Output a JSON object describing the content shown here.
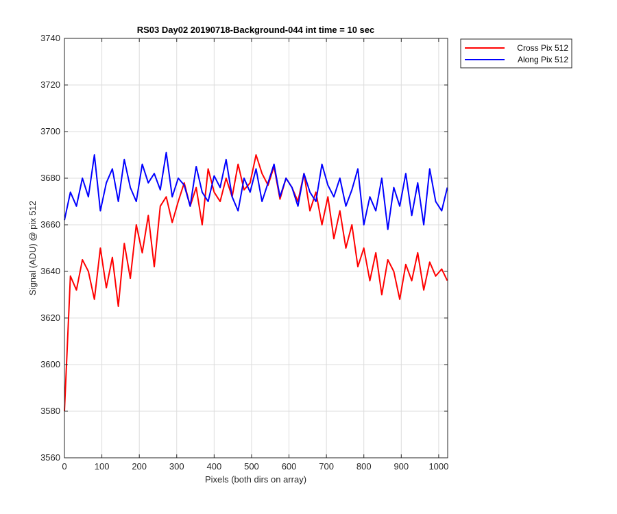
{
  "chart_data": {
    "type": "line",
    "title": "RS03 Day02 20190718-Background-044 int time = 10 sec",
    "xlabel": "Pixels (both dirs on array)",
    "ylabel": "Signal (ADU) @ pix 512",
    "xlim": [
      0,
      1024
    ],
    "ylim": [
      3560,
      3740
    ],
    "xticks": [
      0,
      100,
      200,
      300,
      400,
      500,
      600,
      700,
      800,
      900,
      1000
    ],
    "yticks": [
      3560,
      3580,
      3600,
      3620,
      3640,
      3660,
      3680,
      3700,
      3720,
      3740
    ],
    "grid": true,
    "legend_position": "outside-top-right",
    "x": [
      0,
      16,
      32,
      48,
      64,
      80,
      96,
      112,
      128,
      144,
      160,
      176,
      192,
      208,
      224,
      240,
      256,
      272,
      288,
      304,
      320,
      336,
      352,
      368,
      384,
      400,
      416,
      432,
      448,
      464,
      480,
      496,
      512,
      528,
      544,
      560,
      576,
      592,
      608,
      624,
      640,
      656,
      672,
      688,
      704,
      720,
      736,
      752,
      768,
      784,
      800,
      816,
      832,
      848,
      864,
      880,
      896,
      912,
      928,
      944,
      960,
      976,
      992,
      1008,
      1023
    ],
    "series": [
      {
        "name": "Cross Pix 512",
        "color": "#ff0000",
        "values": [
          3580,
          3638,
          3632,
          3645,
          3640,
          3628,
          3650,
          3633,
          3646,
          3625,
          3652,
          3637,
          3660,
          3648,
          3664,
          3642,
          3668,
          3672,
          3661,
          3670,
          3678,
          3668,
          3676,
          3660,
          3684,
          3674,
          3670,
          3680,
          3672,
          3686,
          3675,
          3678,
          3690,
          3682,
          3677,
          3685,
          3671,
          3680,
          3676,
          3670,
          3682,
          3666,
          3674,
          3660,
          3672,
          3654,
          3666,
          3650,
          3660,
          3642,
          3650,
          3636,
          3648,
          3630,
          3645,
          3640,
          3628,
          3643,
          3636,
          3648,
          3632,
          3644,
          3638,
          3641,
          3636
        ]
      },
      {
        "name": "Along Pix 512",
        "color": "#0000ff",
        "values": [
          3662,
          3674,
          3668,
          3680,
          3672,
          3690,
          3666,
          3678,
          3684,
          3670,
          3688,
          3676,
          3670,
          3686,
          3678,
          3682,
          3675,
          3691,
          3672,
          3680,
          3677,
          3668,
          3685,
          3674,
          3670,
          3681,
          3676,
          3688,
          3672,
          3666,
          3680,
          3674,
          3684,
          3670,
          3678,
          3686,
          3672,
          3680,
          3676,
          3668,
          3682,
          3674,
          3670,
          3686,
          3677,
          3672,
          3680,
          3668,
          3675,
          3684,
          3660,
          3672,
          3666,
          3680,
          3658,
          3676,
          3668,
          3682,
          3664,
          3678,
          3660,
          3684,
          3670,
          3666,
          3676
        ]
      }
    ]
  }
}
